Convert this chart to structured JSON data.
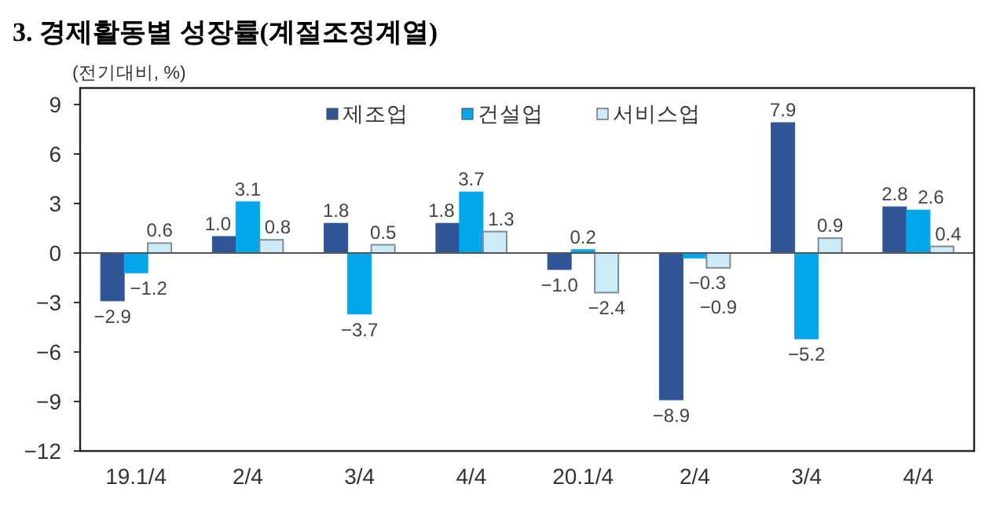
{
  "chart_data": {
    "type": "bar",
    "title": "3. 경제활동별  성장률(계절조정계열)",
    "ylabel": "(전기대비, %)",
    "categories": [
      "19.1/4",
      "2/4",
      "3/4",
      "4/4",
      "20.1/4",
      "2/4",
      "3/4",
      "4/4"
    ],
    "series": [
      {
        "name": "제조업",
        "color": "#2f5597",
        "values": [
          -2.9,
          1.0,
          1.8,
          1.8,
          -1.0,
          -8.9,
          7.9,
          2.8
        ],
        "value_labels": [
          "−2.9",
          "1.0",
          "1.8",
          "1.8",
          "−1.0",
          "−8.9",
          "7.9",
          "2.8"
        ]
      },
      {
        "name": "건설업",
        "color": "#00a6ea",
        "values": [
          -1.2,
          3.1,
          -3.7,
          3.7,
          0.2,
          -0.3,
          -5.2,
          2.6
        ],
        "value_labels": [
          "−1.2",
          "3.1",
          "−3.7",
          "3.7",
          "0.2",
          "−0.3",
          "−5.2",
          "2.6"
        ]
      },
      {
        "name": "서비스업",
        "color": "#cdeaf8",
        "values": [
          0.6,
          0.8,
          0.5,
          1.3,
          -2.4,
          -0.9,
          0.9,
          0.4
        ],
        "value_labels": [
          "0.6",
          "0.8",
          "0.5",
          "1.3",
          "−2.4",
          "−0.9",
          "0.9",
          "0.4"
        ]
      }
    ],
    "ylim": [
      -12,
      10
    ],
    "yticks": [
      -12,
      -9,
      -6,
      -3,
      0,
      3,
      6,
      9
    ],
    "legend": "top"
  }
}
